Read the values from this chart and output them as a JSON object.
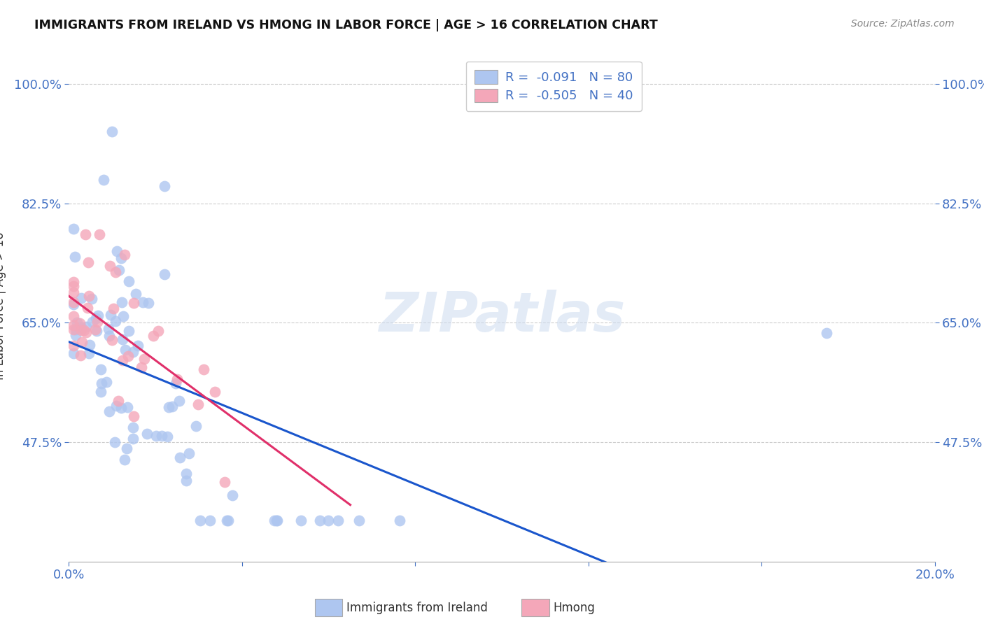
{
  "title": "IMMIGRANTS FROM IRELAND VS HMONG IN LABOR FORCE | AGE > 16 CORRELATION CHART",
  "source": "Source: ZipAtlas.com",
  "ylabel": "In Labor Force | Age > 16",
  "xlim": [
    0.0,
    0.2
  ],
  "ylim": [
    0.3,
    1.05
  ],
  "yticks": [
    0.475,
    0.65,
    0.825,
    1.0
  ],
  "ytick_labels": [
    "47.5%",
    "65.0%",
    "82.5%",
    "100.0%"
  ],
  "xticks": [
    0.0,
    0.04,
    0.08,
    0.12,
    0.16,
    0.2
  ],
  "xtick_labels": [
    "0.0%",
    "",
    "",
    "",
    "",
    "20.0%"
  ],
  "ireland_color": "#aec6f0",
  "hmong_color": "#f4a7b9",
  "ireland_line_color": "#1a56cc",
  "hmong_line_color": "#e0306a",
  "legend_ireland_label": "R =  -0.091   N = 80",
  "legend_hmong_label": "R =  -0.505   N = 40",
  "legend_label_ireland": "Immigrants from Ireland",
  "legend_label_hmong": "Hmong",
  "watermark": "ZIPatlas",
  "ireland_N": 80,
  "hmong_N": 40,
  "ireland_seed": 7,
  "hmong_seed": 13
}
